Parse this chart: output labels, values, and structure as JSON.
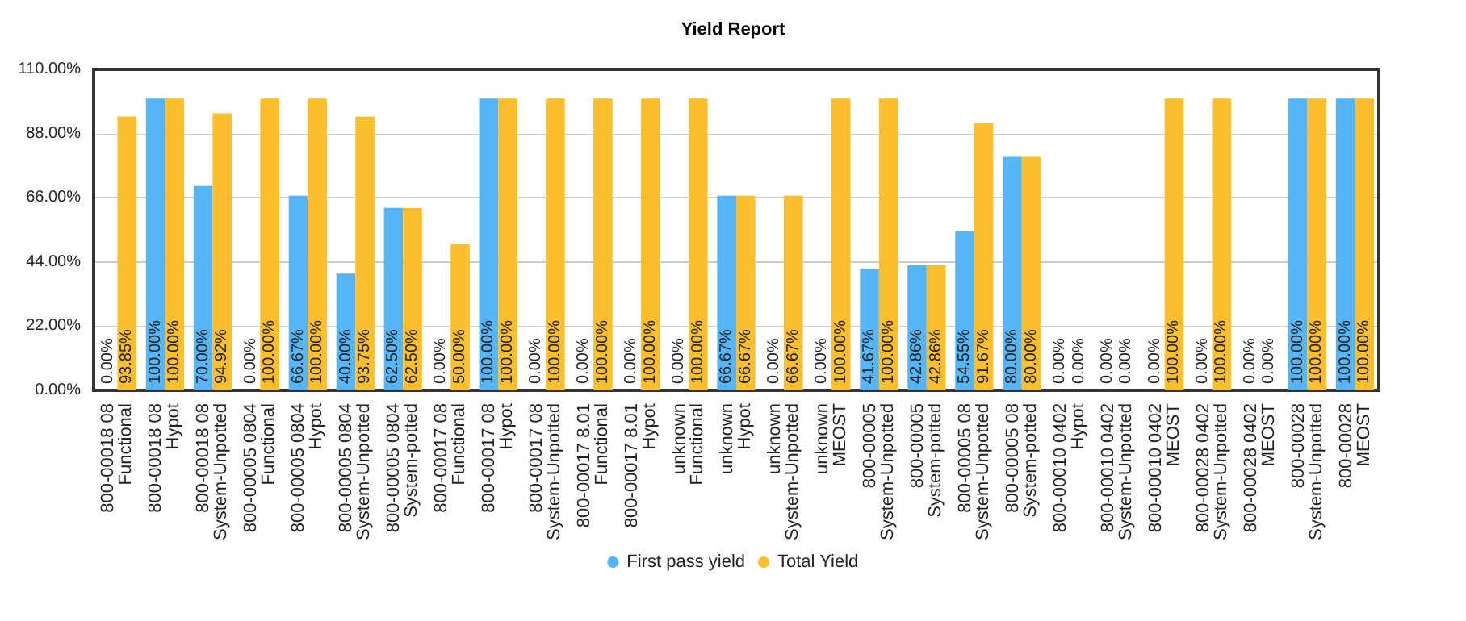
{
  "chart_data": {
    "type": "bar",
    "title": "Yield Report",
    "categories": [
      "800-00018 08\nFunctional",
      "800-00018 08\nHypot",
      "800-00018 08\nSystem-Unpotted",
      "800-00005 0804\nFunctional",
      "800-00005 0804\nHypot",
      "800-00005 0804\nSystem-Unpotted",
      "800-00005 0804\nSystem-potted",
      "800-00017 08\nFunctional",
      "800-00017 08\nHypot",
      "800-00017 08\nSystem-Unpotted",
      "800-00017 8.01\nFunctional",
      "800-00017 8.01\nHypot",
      "unknown\nFunctional",
      "unknown\nHypot",
      "unknown\nSystem-Unpotted",
      "unknown\nMEOST",
      "800-00005\nSystem-Unpotted",
      "800-00005\nSystem-potted",
      "800-00005 08\nSystem-Unpotted",
      "800-00005 08\nSystem-potted",
      "800-00010 0402\nHypot",
      "800-00010 0402\nSystem-Unpotted",
      "800-00010 0402\nMEOST",
      "800-00028 0402\nSystem-Unpotted",
      "800-00028 0402\nMEOST",
      "800-00028\nSystem-Unpotted",
      "800-00028\nMEOST"
    ],
    "series": [
      {
        "name": "First pass yield",
        "color": "#55b5f6",
        "values": [
          0,
          100,
          70,
          0,
          66.67,
          40,
          62.5,
          0,
          100,
          0,
          0,
          0,
          0,
          66.67,
          0,
          0,
          41.67,
          42.86,
          54.55,
          80,
          0,
          0,
          0,
          0,
          0,
          100,
          100
        ],
        "value_labels": [
          "0.00%",
          "100.00%",
          "70.00%",
          "0.00%",
          "66.67%",
          "40.00%",
          "62.50%",
          "0.00%",
          "100.00%",
          "0.00%",
          "0.00%",
          "0.00%",
          "0.00%",
          "66.67%",
          "0.00%",
          "0.00%",
          "41.67%",
          "42.86%",
          "54.55%",
          "80.00%",
          "0.00%",
          "0.00%",
          "0.00%",
          "0.00%",
          "0.00%",
          "100.00%",
          "100.00%"
        ]
      },
      {
        "name": "Total Yield",
        "color": "#fbbe2d",
        "values": [
          93.85,
          100,
          94.92,
          100,
          100,
          93.75,
          62.5,
          50,
          100,
          100,
          100,
          100,
          100,
          66.67,
          66.67,
          100,
          100,
          42.86,
          91.67,
          80,
          0,
          0,
          100,
          100,
          0,
          100,
          100
        ],
        "value_labels": [
          "93.85%",
          "100.00%",
          "94.92%",
          "100.00%",
          "100.00%",
          "93.75%",
          "62.50%",
          "50.00%",
          "100.00%",
          "100.00%",
          "100.00%",
          "100.00%",
          "100.00%",
          "66.67%",
          "66.67%",
          "100.00%",
          "100.00%",
          "42.86%",
          "91.67%",
          "80.00%",
          "0.00%",
          "0.00%",
          "100.00%",
          "100.00%",
          "0.00%",
          "100.00%",
          "100.00%"
        ]
      }
    ],
    "ylim": [
      0,
      110
    ],
    "yticks": [
      {
        "value": 0,
        "label": "0.00%"
      },
      {
        "value": 22,
        "label": "22.00%"
      },
      {
        "value": 44,
        "label": "44.00%"
      },
      {
        "value": 66,
        "label": "66.00%"
      },
      {
        "value": 88,
        "label": "88.00%"
      },
      {
        "value": 110,
        "label": "110.00%"
      }
    ],
    "grid": "y",
    "legend": "bottom"
  }
}
